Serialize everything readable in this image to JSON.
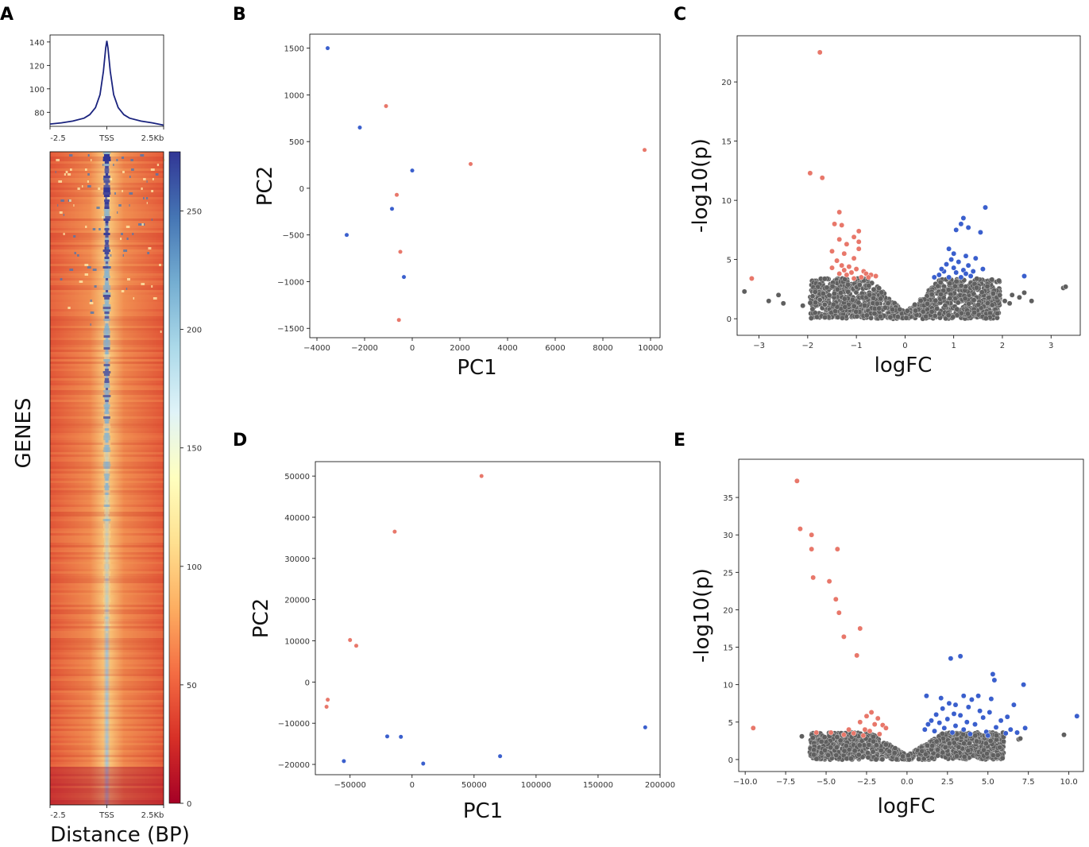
{
  "figure": {
    "panels": [
      "A",
      "B",
      "C",
      "D",
      "E"
    ]
  },
  "chart_data": [
    {
      "panel": "A",
      "type": "line",
      "subtype": "tss-profile",
      "title": "",
      "xticks": [
        "-2.5",
        "TSS",
        "2.5Kb"
      ],
      "yticks": [
        80,
        100,
        120,
        140
      ],
      "ylim": [
        68,
        146
      ],
      "x": [
        -2.5,
        -2.0,
        -1.5,
        -1.0,
        -0.75,
        -0.5,
        -0.3,
        -0.15,
        -0.05,
        0,
        0.05,
        0.15,
        0.3,
        0.5,
        0.75,
        1.0,
        1.5,
        2.0,
        2.5
      ],
      "values": [
        70,
        71,
        72.5,
        75,
        78,
        84,
        95,
        115,
        135,
        141,
        135,
        115,
        95,
        84,
        78,
        75,
        72.5,
        71,
        69
      ],
      "color": "#1a237e"
    },
    {
      "panel": "A",
      "type": "heatmap",
      "ylabel": "GENES",
      "xlabel": "Distance (BP)",
      "xticks": [
        "-2.5",
        "TSS",
        "2.5Kb"
      ],
      "colorbar_ticks": [
        0,
        50,
        100,
        150,
        200,
        250
      ],
      "colorbar_range": [
        0,
        275
      ],
      "colormap": [
        "#a50026",
        "#d73027",
        "#f46d43",
        "#fdae61",
        "#fee090",
        "#ffffbf",
        "#e0f3f8",
        "#abd9e9",
        "#74add1",
        "#4575b4",
        "#313695"
      ]
    },
    {
      "panel": "B",
      "type": "scatter",
      "xlabel": "PC1",
      "ylabel": "PC2",
      "xlim": [
        -4300,
        10400
      ],
      "ylim": [
        -1600,
        1650
      ],
      "xticks": [
        -4000,
        -2000,
        0,
        2000,
        4000,
        6000,
        8000,
        10000
      ],
      "yticks": [
        -1500,
        -1000,
        -500,
        0,
        500,
        1000,
        1500
      ],
      "series": [
        {
          "name": "group-red",
          "color": "#e8776a",
          "points": [
            [
              -1100,
              880
            ],
            [
              2450,
              260
            ],
            [
              9750,
              410
            ],
            [
              -650,
              -70
            ],
            [
              -500,
              -680
            ],
            [
              -560,
              -1410
            ]
          ]
        },
        {
          "name": "group-blue",
          "color": "#3a5fcd",
          "points": [
            [
              -3550,
              1500
            ],
            [
              -2200,
              650
            ],
            [
              0,
              190
            ],
            [
              -850,
              -220
            ],
            [
              -2750,
              -500
            ],
            [
              -350,
              -950
            ]
          ]
        }
      ]
    },
    {
      "panel": "C",
      "type": "scatter",
      "subtype": "volcano",
      "xlabel": "logFC",
      "ylabel": "-log10(p)",
      "xlim": [
        -3.45,
        3.6
      ],
      "ylim": [
        -1.4,
        23.9
      ],
      "xticks": [
        -3,
        -2,
        -1,
        0,
        1,
        2,
        3
      ],
      "yticks": [
        0,
        5,
        10,
        15,
        20
      ],
      "series": [
        {
          "name": "down",
          "color": "#e8776a",
          "points": [
            [
              -1.75,
              22.5
            ],
            [
              -1.95,
              12.3
            ],
            [
              -1.7,
              11.9
            ],
            [
              -1.35,
              9.0
            ],
            [
              -1.45,
              8.0
            ],
            [
              -1.3,
              7.9
            ],
            [
              -0.95,
              7.4
            ],
            [
              -1.05,
              6.9
            ],
            [
              -1.35,
              6.7
            ],
            [
              -0.95,
              6.5
            ],
            [
              -1.2,
              6.3
            ],
            [
              -1.5,
              5.7
            ],
            [
              -1.25,
              5.5
            ],
            [
              -1.05,
              5.1
            ],
            [
              -0.95,
              5.9
            ],
            [
              -1.4,
              4.9
            ],
            [
              -1.3,
              4.5
            ],
            [
              -1.15,
              4.4
            ],
            [
              -1.0,
              4.2
            ],
            [
              -1.25,
              4.1
            ],
            [
              -0.85,
              4.0
            ],
            [
              -1.1,
              3.9
            ],
            [
              -0.8,
              3.8
            ],
            [
              -0.7,
              3.7
            ],
            [
              -0.6,
              3.6
            ],
            [
              -1.2,
              3.7
            ],
            [
              -0.9,
              3.5
            ],
            [
              -1.35,
              3.8
            ],
            [
              -1.05,
              3.4
            ],
            [
              -0.75,
              3.5
            ],
            [
              -3.15,
              3.4
            ],
            [
              -1.5,
              4.3
            ]
          ]
        },
        {
          "name": "up",
          "color": "#3a5fcd",
          "points": [
            [
              1.65,
              9.4
            ],
            [
              1.2,
              8.5
            ],
            [
              1.15,
              8.0
            ],
            [
              1.3,
              7.7
            ],
            [
              1.05,
              7.5
            ],
            [
              1.55,
              7.3
            ],
            [
              0.9,
              5.9
            ],
            [
              1.0,
              5.5
            ],
            [
              1.25,
              5.3
            ],
            [
              0.95,
              5.0
            ],
            [
              1.45,
              5.1
            ],
            [
              1.1,
              4.8
            ],
            [
              0.85,
              4.6
            ],
            [
              1.3,
              4.5
            ],
            [
              1.0,
              4.3
            ],
            [
              1.2,
              4.1
            ],
            [
              0.8,
              4.0
            ],
            [
              1.6,
              4.2
            ],
            [
              1.05,
              3.9
            ],
            [
              0.7,
              3.7
            ],
            [
              1.35,
              3.6
            ],
            [
              0.9,
              3.5
            ],
            [
              1.15,
              3.5
            ],
            [
              0.6,
              3.5
            ],
            [
              1.25,
              3.8
            ],
            [
              2.45,
              3.6
            ],
            [
              1.4,
              4.0
            ],
            [
              0.75,
              4.2
            ]
          ]
        },
        {
          "name": "ns-outliers",
          "color": "#5f5f5f",
          "points": [
            [
              -3.3,
              2.3
            ],
            [
              -2.6,
              2.0
            ],
            [
              -2.5,
              1.3
            ],
            [
              -2.8,
              1.5
            ],
            [
              -2.1,
              1.1
            ],
            [
              -1.9,
              1.9
            ],
            [
              -1.75,
              1.6
            ],
            [
              -1.65,
              1.2
            ],
            [
              3.25,
              2.6
            ],
            [
              3.3,
              2.7
            ],
            [
              2.45,
              2.2
            ],
            [
              2.35,
              1.8
            ],
            [
              2.2,
              2.0
            ],
            [
              2.15,
              1.3
            ],
            [
              2.05,
              1.5
            ],
            [
              2.6,
              1.5
            ]
          ]
        }
      ],
      "cloud": {
        "color": "#5f5f5f"
      }
    },
    {
      "panel": "D",
      "type": "scatter",
      "xlabel": "PC1",
      "ylabel": "PC2",
      "xlim": [
        -78000,
        200000
      ],
      "ylim": [
        -22500,
        53500
      ],
      "xticks": [
        -50000,
        0,
        50000,
        100000,
        150000,
        200000
      ],
      "xtick_labels": [
        "−50000",
        "0",
        "50000",
        "100000",
        "150000",
        "200000"
      ],
      "yticks": [
        -20000,
        -10000,
        0,
        10000,
        20000,
        30000,
        40000,
        50000
      ],
      "series": [
        {
          "name": "group-red",
          "color": "#e8776a",
          "points": [
            [
              56000,
              50000
            ],
            [
              -14000,
              36500
            ],
            [
              -50000,
              10200
            ],
            [
              -45000,
              8800
            ],
            [
              -68000,
              -4300
            ],
            [
              -69000,
              -6000
            ]
          ]
        },
        {
          "name": "group-blue",
          "color": "#3a5fcd",
          "points": [
            [
              188000,
              -11000
            ],
            [
              -20000,
              -13200
            ],
            [
              -9000,
              -13300
            ],
            [
              71000,
              -18000
            ],
            [
              -55000,
              -19200
            ],
            [
              9000,
              -19800
            ]
          ]
        }
      ]
    },
    {
      "panel": "E",
      "type": "scatter",
      "subtype": "volcano",
      "xlabel": "logFC",
      "ylabel": "-log10(p)",
      "xlim": [
        -10.4,
        10.9
      ],
      "ylim": [
        -1.6,
        40.1
      ],
      "xticks": [
        -10.0,
        -7.5,
        -5.0,
        -2.5,
        0.0,
        2.5,
        5.0,
        7.5,
        10.0
      ],
      "xtick_labels": [
        "−10.0",
        "−7.5",
        "−5.0",
        "−2.5",
        "0.0",
        "2.5",
        "5.0",
        "7.5",
        "10.0"
      ],
      "yticks": [
        0,
        5,
        10,
        15,
        20,
        25,
        30,
        35
      ],
      "series": [
        {
          "name": "down",
          "color": "#e8776a",
          "points": [
            [
              -6.8,
              37.2
            ],
            [
              -6.6,
              30.8
            ],
            [
              -5.9,
              30.0
            ],
            [
              -5.9,
              28.1
            ],
            [
              -4.3,
              28.1
            ],
            [
              -5.8,
              24.3
            ],
            [
              -4.8,
              23.8
            ],
            [
              -4.4,
              21.4
            ],
            [
              -4.2,
              19.6
            ],
            [
              -3.9,
              16.4
            ],
            [
              -2.9,
              17.5
            ],
            [
              -3.1,
              13.9
            ],
            [
              -9.5,
              4.2
            ],
            [
              -2.2,
              6.3
            ],
            [
              -2.5,
              5.8
            ],
            [
              -1.8,
              5.5
            ],
            [
              -2.9,
              5.0
            ],
            [
              -2.0,
              4.7
            ],
            [
              -1.5,
              4.6
            ],
            [
              -3.6,
              4.0
            ],
            [
              -2.6,
              4.0
            ],
            [
              -1.3,
              4.2
            ],
            [
              -2.3,
              3.8
            ],
            [
              -4.7,
              3.6
            ],
            [
              -5.6,
              3.6
            ],
            [
              -3.3,
              3.5
            ],
            [
              -1.7,
              3.4
            ],
            [
              -3.9,
              3.3
            ],
            [
              -2.7,
              3.2
            ]
          ]
        },
        {
          "name": "up",
          "color": "#3a5fcd",
          "points": [
            [
              3.3,
              13.8
            ],
            [
              2.7,
              13.5
            ],
            [
              5.3,
              11.4
            ],
            [
              5.4,
              10.6
            ],
            [
              7.2,
              10.0
            ],
            [
              1.2,
              8.5
            ],
            [
              3.5,
              8.5
            ],
            [
              4.4,
              8.5
            ],
            [
              4.0,
              8.0
            ],
            [
              5.2,
              8.1
            ],
            [
              2.1,
              8.2
            ],
            [
              2.6,
              7.5
            ],
            [
              3.0,
              7.3
            ],
            [
              6.6,
              7.3
            ],
            [
              3.8,
              7.0
            ],
            [
              2.2,
              6.8
            ],
            [
              4.5,
              6.5
            ],
            [
              2.9,
              6.1
            ],
            [
              5.1,
              6.3
            ],
            [
              1.8,
              6.0
            ],
            [
              3.3,
              5.9
            ],
            [
              4.7,
              5.6
            ],
            [
              6.2,
              5.7
            ],
            [
              2.5,
              5.4
            ],
            [
              1.5,
              5.2
            ],
            [
              3.7,
              5.0
            ],
            [
              5.8,
              5.2
            ],
            [
              10.5,
              5.8
            ],
            [
              2.0,
              4.9
            ],
            [
              4.2,
              4.7
            ],
            [
              1.3,
              4.7
            ],
            [
              3.0,
              4.5
            ],
            [
              7.3,
              4.2
            ],
            [
              6.4,
              4.0
            ],
            [
              2.3,
              4.2
            ],
            [
              5.5,
              4.3
            ],
            [
              1.1,
              4.0
            ],
            [
              3.5,
              4.0
            ],
            [
              6.8,
              3.6
            ],
            [
              4.9,
              3.7
            ],
            [
              2.8,
              3.6
            ],
            [
              1.7,
              3.8
            ],
            [
              3.9,
              3.4
            ],
            [
              5.0,
              3.2
            ],
            [
              6.1,
              3.5
            ]
          ]
        },
        {
          "name": "ns-outliers",
          "color": "#5f5f5f",
          "points": [
            [
              -6.5,
              3.1
            ],
            [
              9.7,
              3.3
            ],
            [
              6.9,
              2.7
            ],
            [
              7.0,
              2.8
            ]
          ]
        }
      ],
      "cloud": {
        "color": "#5f5f5f"
      }
    }
  ]
}
